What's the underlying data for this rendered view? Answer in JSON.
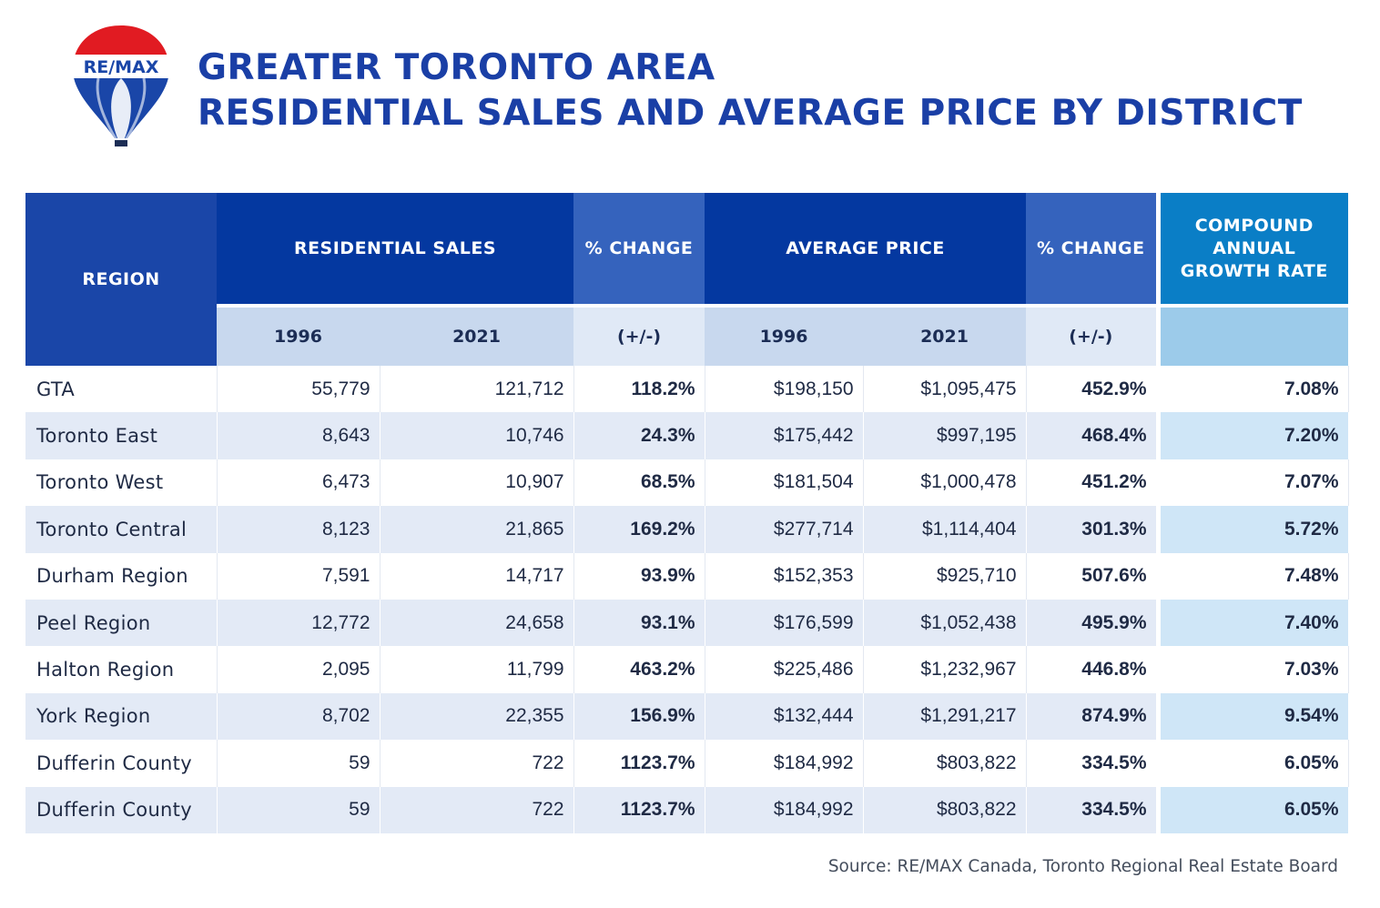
{
  "logo": {
    "text": "RE/MAX"
  },
  "title": {
    "line1": "GREATER TORONTO AREA",
    "line2": "RESIDENTIAL SALES AND AVERAGE PRICE BY DISTRICT"
  },
  "headers": {
    "region": "REGION",
    "residential_sales": "RESIDENTIAL SALES",
    "sales_change": "% CHANGE",
    "average_price": "AVERAGE PRICE",
    "price_change": "% CHANGE",
    "cagr": "COMPOUND ANNUAL GROWTH RATE",
    "year_a": "1996",
    "year_b": "2021",
    "plus_minus": "(+/-)"
  },
  "rows": [
    {
      "region": "GTA",
      "sales_1996": "55,779",
      "sales_2021": "121,712",
      "sales_change": "118.2%",
      "price_1996": "$198,150",
      "price_2021": "$1,095,475",
      "price_change": "452.9%",
      "cagr": "7.08%"
    },
    {
      "region": "Toronto East",
      "sales_1996": "8,643",
      "sales_2021": "10,746",
      "sales_change": "24.3%",
      "price_1996": "$175,442",
      "price_2021": "$997,195",
      "price_change": "468.4%",
      "cagr": "7.20%"
    },
    {
      "region": "Toronto West",
      "sales_1996": "6,473",
      "sales_2021": "10,907",
      "sales_change": "68.5%",
      "price_1996": "$181,504",
      "price_2021": "$1,000,478",
      "price_change": "451.2%",
      "cagr": "7.07%"
    },
    {
      "region": "Toronto Central",
      "sales_1996": "8,123",
      "sales_2021": "21,865",
      "sales_change": "169.2%",
      "price_1996": "$277,714",
      "price_2021": "$1,114,404",
      "price_change": "301.3%",
      "cagr": "5.72%"
    },
    {
      "region": "Durham Region",
      "sales_1996": "7,591",
      "sales_2021": "14,717",
      "sales_change": "93.9%",
      "price_1996": "$152,353",
      "price_2021": "$925,710",
      "price_change": "507.6%",
      "cagr": "7.48%"
    },
    {
      "region": "Peel Region",
      "sales_1996": "12,772",
      "sales_2021": "24,658",
      "sales_change": "93.1%",
      "price_1996": "$176,599",
      "price_2021": "$1,052,438",
      "price_change": "495.9%",
      "cagr": "7.40%"
    },
    {
      "region": "Halton Region",
      "sales_1996": "2,095",
      "sales_2021": "11,799",
      "sales_change": "463.2%",
      "price_1996": "$225,486",
      "price_2021": "$1,232,967",
      "price_change": "446.8%",
      "cagr": "7.03%"
    },
    {
      "region": "York Region",
      "sales_1996": "8,702",
      "sales_2021": "22,355",
      "sales_change": "156.9%",
      "price_1996": "$132,444",
      "price_2021": "$1,291,217",
      "price_change": "874.9%",
      "cagr": "9.54%"
    },
    {
      "region": "Dufferin County",
      "sales_1996": "59",
      "sales_2021": "722",
      "sales_change": "1123.7%",
      "price_1996": "$184,992",
      "price_2021": "$803,822",
      "price_change": "334.5%",
      "cagr": "6.05%"
    },
    {
      "region": "Dufferin County",
      "sales_1996": "59",
      "sales_2021": "722",
      "sales_change": "1123.7%",
      "price_1996": "$184,992",
      "price_2021": "$803,822",
      "price_change": "334.5%",
      "cagr": "6.05%"
    }
  ],
  "source": "Source: RE/MAX Canada, Toronto Regional Real Estate Board"
}
